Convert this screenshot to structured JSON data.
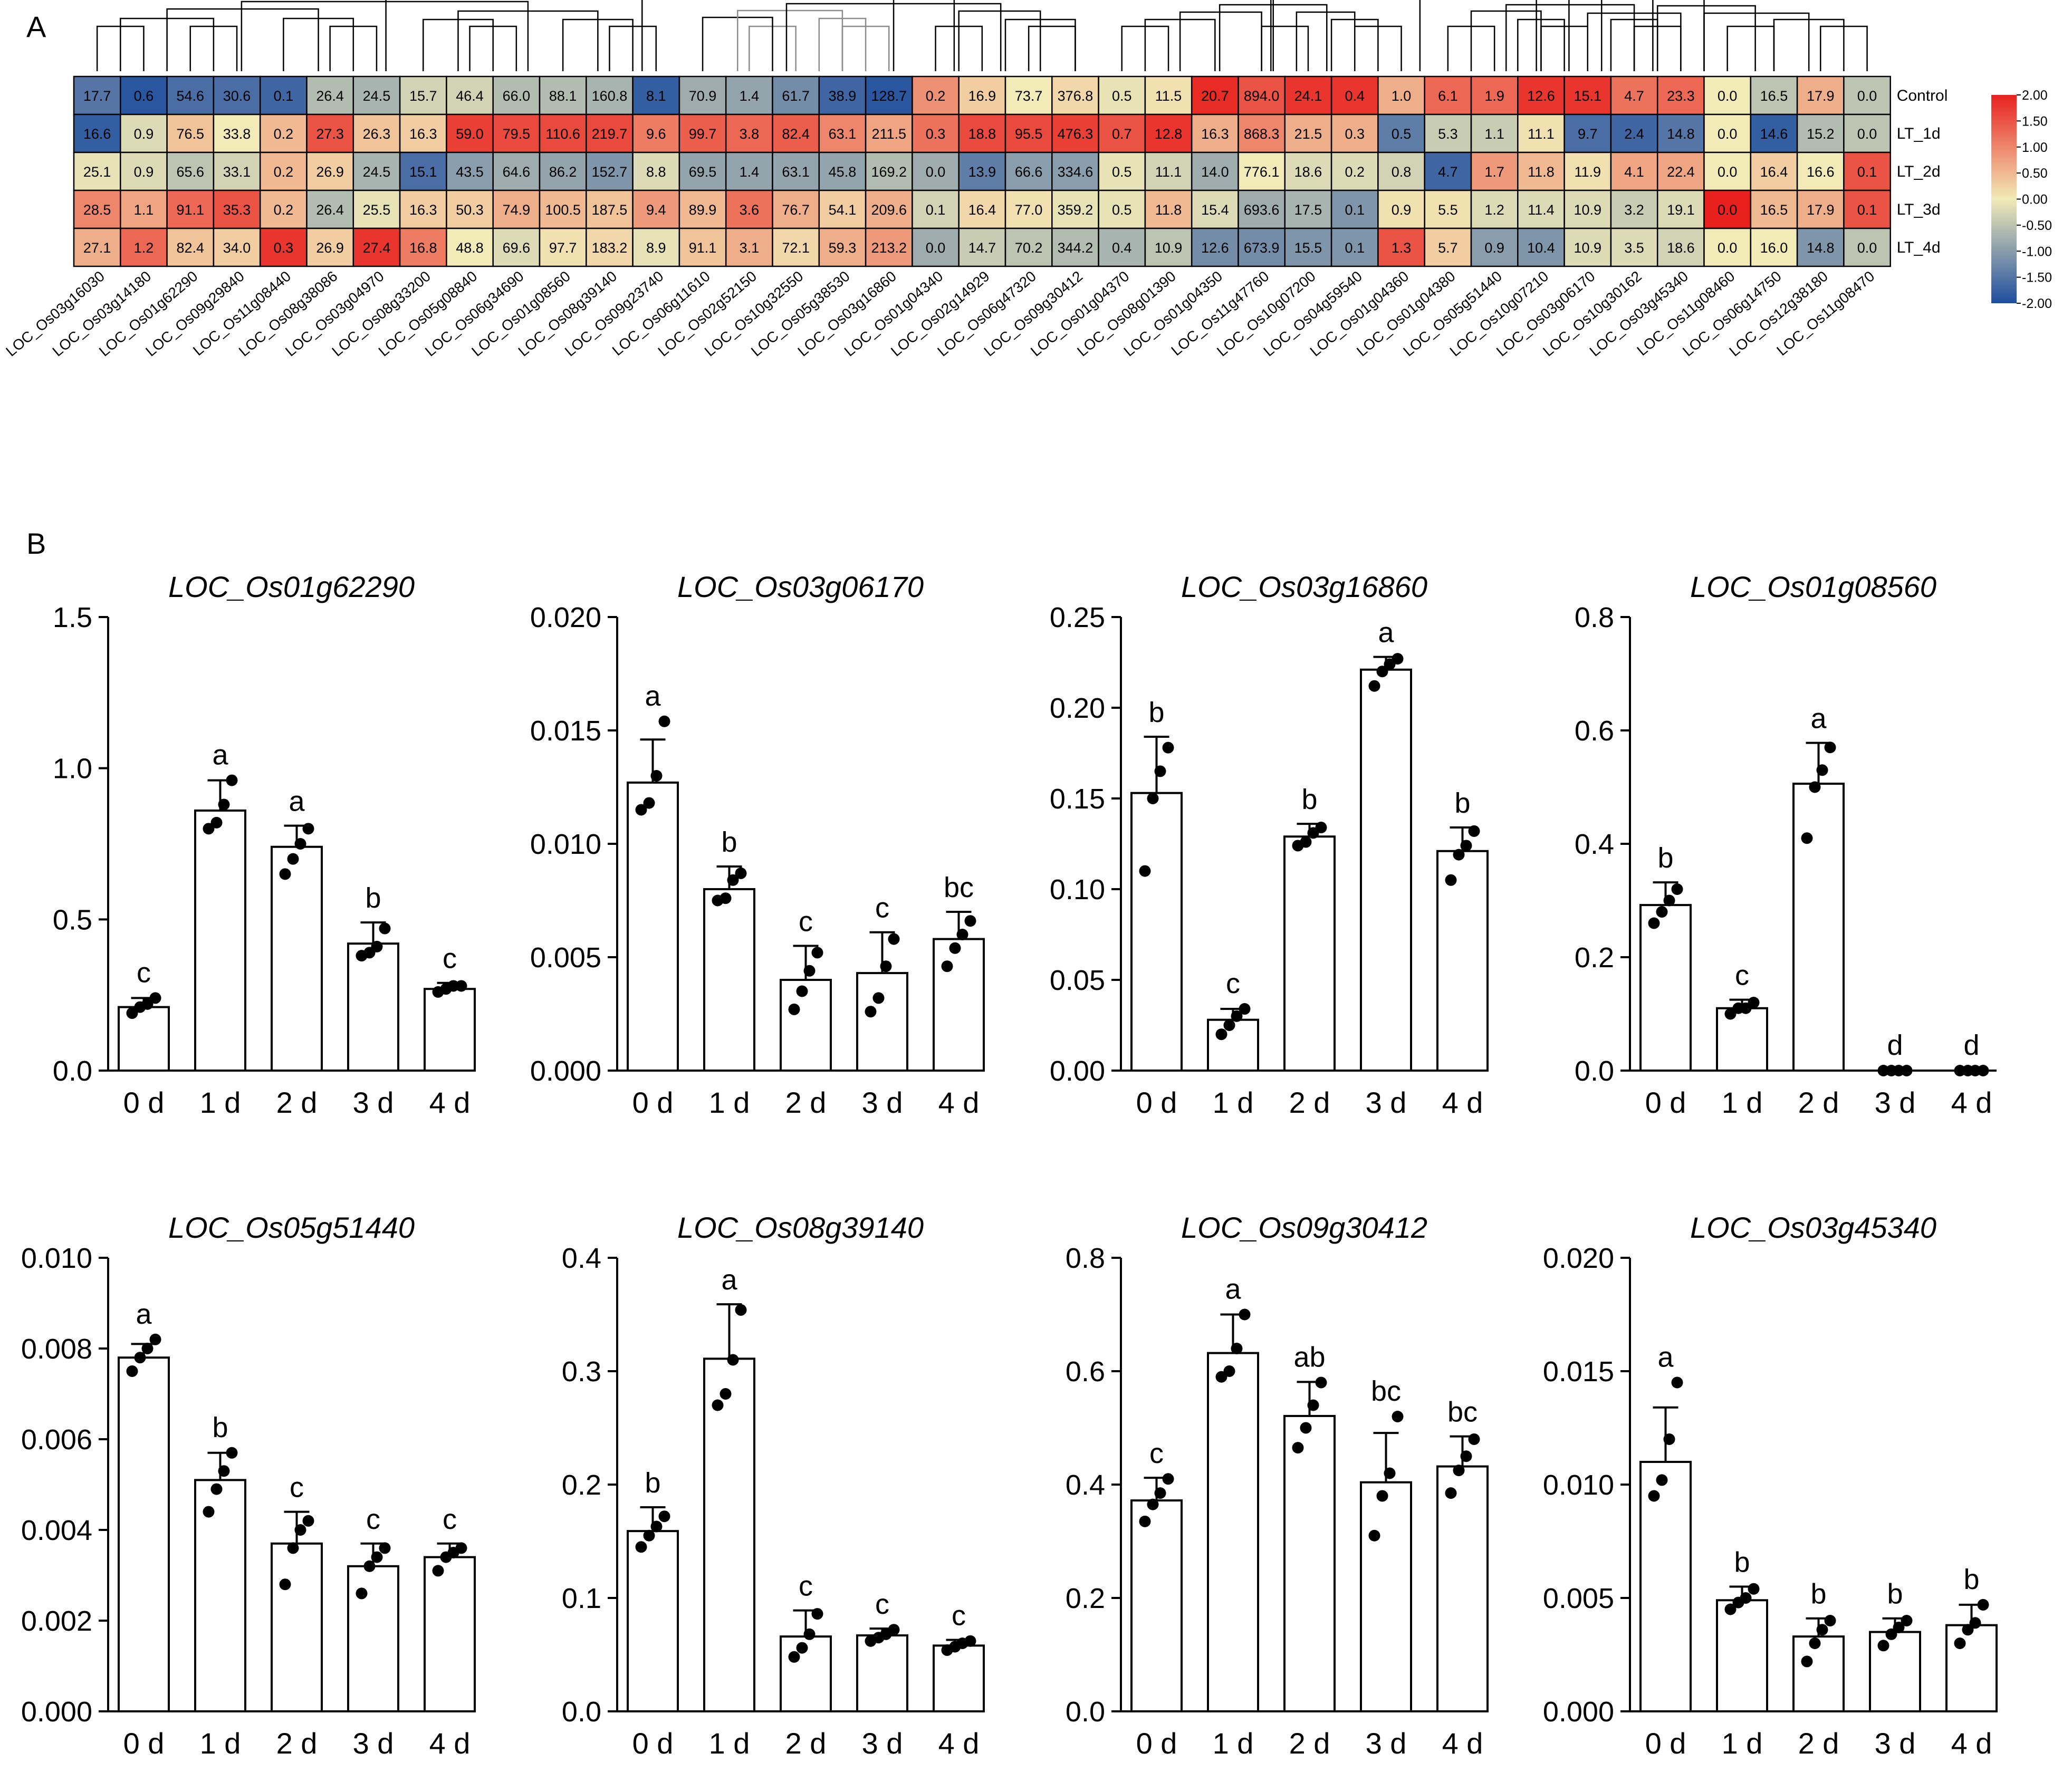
{
  "panel_labels": {
    "a": "A",
    "b": "B"
  },
  "chart_data": [
    {
      "type": "heatmap",
      "panel": "A",
      "title": "",
      "rows": [
        "Control",
        "LT_1d",
        "LT_2d",
        "LT_3d",
        "LT_4d"
      ],
      "columns": [
        "LOC_Os03g16030",
        "LOC_Os03g14180",
        "LOC_Os01g62290",
        "LOC_Os09g29840",
        "LOC_Os11g08440",
        "LOC_Os08g38086",
        "LOC_Os03g04970",
        "LOC_Os08g33200",
        "LOC_Os05g08840",
        "LOC_Os06g34690",
        "LOC_Os01g08560",
        "LOC_Os08g39140",
        "LOC_Os09g23740",
        "LOC_Os06g11610",
        "LOC_Os02g52150",
        "LOC_Os10g32550",
        "LOC_Os05g38530",
        "LOC_Os03g16860",
        "LOC_Os01g04340",
        "LOC_Os02g14929",
        "LOC_Os06g47320",
        "LOC_Os09g30412",
        "LOC_Os01g04370",
        "LOC_Os08g01390",
        "LOC_Os01g04350",
        "LOC_Os11g47760",
        "LOC_Os10g07200",
        "LOC_Os04g59540",
        "LOC_Os01g04360",
        "LOC_Os01g04380",
        "LOC_Os05g51440",
        "LOC_Os10g07210",
        "LOC_Os03g06170",
        "LOC_Os10g30162",
        "LOC_Os03g45340",
        "LOC_Os11g08460",
        "LOC_Os06g14750",
        "LOC_Os12g38180",
        "LOC_Os11g08470"
      ],
      "cell_labels": [
        [
          "17.7",
          "0.6",
          "54.6",
          "30.6",
          "0.1",
          "26.4",
          "24.5",
          "15.7",
          "46.4",
          "66.0",
          "88.1",
          "160.8",
          "8.1",
          "70.9",
          "1.4",
          "61.7",
          "38.9",
          "128.7",
          "0.2",
          "16.9",
          "73.7",
          "376.8",
          "0.5",
          "11.5",
          "20.7",
          "894.0",
          "24.1",
          "0.4",
          "1.0",
          "6.1",
          "1.9",
          "12.6",
          "15.1",
          "4.7",
          "23.3",
          "0.0",
          "16.5",
          "17.9",
          "0.0"
        ],
        [
          "16.6",
          "0.9",
          "76.5",
          "33.8",
          "0.2",
          "27.3",
          "26.3",
          "16.3",
          "59.0",
          "79.5",
          "110.6",
          "219.7",
          "9.6",
          "99.7",
          "3.8",
          "82.4",
          "63.1",
          "211.5",
          "0.3",
          "18.8",
          "95.5",
          "476.3",
          "0.7",
          "12.8",
          "16.3",
          "868.3",
          "21.5",
          "0.3",
          "0.5",
          "5.3",
          "1.1",
          "11.1",
          "9.7",
          "2.4",
          "14.8",
          "0.0",
          "14.6",
          "15.2",
          "0.0"
        ],
        [
          "25.1",
          "0.9",
          "65.6",
          "33.1",
          "0.2",
          "26.9",
          "24.5",
          "15.1",
          "43.5",
          "64.6",
          "86.2",
          "152.7",
          "8.8",
          "69.5",
          "1.4",
          "63.1",
          "45.8",
          "169.2",
          "0.0",
          "13.9",
          "66.6",
          "334.6",
          "0.5",
          "11.1",
          "14.0",
          "776.1",
          "18.6",
          "0.2",
          "0.8",
          "4.7",
          "1.7",
          "11.8",
          "11.9",
          "4.1",
          "22.4",
          "0.0",
          "16.4",
          "16.6",
          "0.1"
        ],
        [
          "28.5",
          "1.1",
          "91.1",
          "35.3",
          "0.2",
          "26.4",
          "25.5",
          "16.3",
          "50.3",
          "74.9",
          "100.5",
          "187.5",
          "9.4",
          "89.9",
          "3.6",
          "76.7",
          "54.1",
          "209.6",
          "0.1",
          "16.4",
          "77.0",
          "359.2",
          "0.5",
          "11.8",
          "15.4",
          "693.6",
          "17.5",
          "0.1",
          "0.9",
          "5.5",
          "1.2",
          "11.4",
          "10.9",
          "3.2",
          "19.1",
          "0.0",
          "16.5",
          "17.9",
          "0.1"
        ],
        [
          "27.1",
          "1.2",
          "82.4",
          "34.0",
          "0.3",
          "26.9",
          "27.4",
          "16.8",
          "48.8",
          "69.6",
          "97.7",
          "183.2",
          "8.9",
          "91.1",
          "3.1",
          "72.1",
          "59.3",
          "213.2",
          "0.0",
          "14.7",
          "70.2",
          "344.2",
          "0.4",
          "10.9",
          "12.6",
          "673.9",
          "15.5",
          "0.1",
          "1.3",
          "5.7",
          "0.9",
          "10.4",
          "10.9",
          "3.5",
          "18.6",
          "0.0",
          "16.0",
          "14.8",
          "0.0"
        ]
      ],
      "z_scores": [
        [
          -1.5,
          -1.9,
          -1.6,
          -1.6,
          -1.7,
          -0.6,
          -0.7,
          -0.3,
          -0.3,
          -0.6,
          -0.6,
          -0.7,
          -1.8,
          -0.8,
          -0.9,
          -1.2,
          -1.7,
          -1.9,
          0.9,
          0.3,
          0.0,
          0.2,
          -0.1,
          0.1,
          1.9,
          1.5,
          1.8,
          1.8,
          0.6,
          1.3,
          1.3,
          1.8,
          1.8,
          1.2,
          1.3,
          0,
          -0.5,
          0.6,
          -0.5
        ],
        [
          -1.8,
          -0.2,
          0.4,
          0.0,
          0.5,
          1.5,
          0.4,
          0.3,
          1.7,
          1.6,
          1.6,
          1.6,
          1.1,
          1.4,
          1.3,
          1.4,
          1.0,
          0.7,
          1.2,
          1.6,
          1.6,
          1.7,
          1.5,
          1.8,
          0.6,
          1.0,
          0.6,
          0.6,
          -1.4,
          -0.4,
          -0.4,
          0.1,
          -1.6,
          -1.7,
          -1.5,
          0,
          -1.8,
          -0.6,
          -0.5
        ],
        [
          -0.1,
          -0.2,
          -0.5,
          -0.3,
          0.5,
          0.3,
          -0.7,
          -1.6,
          -1.0,
          -0.8,
          -0.9,
          -1.1,
          -0.2,
          -0.9,
          -0.9,
          -0.9,
          -0.9,
          -0.6,
          -0.8,
          -1.4,
          -1.0,
          -1.0,
          -0.1,
          -0.3,
          -0.8,
          0.0,
          -0.2,
          -0.2,
          -0.3,
          -1.7,
          0.8,
          0.5,
          0.1,
          0.7,
          0.7,
          0,
          0.3,
          0.0,
          1.5
        ],
        [
          1.0,
          0.7,
          1.3,
          1.5,
          0.5,
          -0.6,
          -0.1,
          0.3,
          0.3,
          0.6,
          0.5,
          0.4,
          0.8,
          0.5,
          1.2,
          0.6,
          0.3,
          0.6,
          -0.3,
          0.2,
          0.1,
          -0.1,
          -0.1,
          0.5,
          -0.2,
          -0.8,
          -0.7,
          -1.1,
          0.1,
          0.1,
          -0.2,
          -0.2,
          -0.2,
          -0.4,
          -0.2,
          2.0,
          0.5,
          0.6,
          1.5
        ],
        [
          0.6,
          1.3,
          0.4,
          0.3,
          1.8,
          0.3,
          1.8,
          1.1,
          0.0,
          -0.2,
          0.1,
          0.2,
          -0.1,
          0.4,
          0.6,
          0.2,
          0.6,
          0.8,
          -0.8,
          -0.4,
          -0.5,
          -0.6,
          -0.7,
          -0.5,
          -1.2,
          -1.2,
          -1.1,
          -1.1,
          1.5,
          0.3,
          -1.0,
          -1.1,
          -0.2,
          -0.2,
          -0.3,
          0,
          0.0,
          -1.1,
          -0.5
        ]
      ],
      "colorbar": {
        "ticks": [
          "2.00",
          "1.50",
          "1.00",
          "0.50",
          "0.00",
          "-0.50",
          "-1.00",
          "-1.50",
          "-2.00"
        ],
        "range": [
          -2,
          2
        ],
        "colors": {
          "low": "#1f4e9f",
          "mid": "#f2ebb8",
          "high": "#e8211e"
        }
      },
      "dendrogram_colors": {
        "main": "#000000",
        "sub": "#8c8c8c"
      }
    },
    {
      "type": "bar",
      "panel": "B",
      "title": "LOC_Os01g62290",
      "categories": [
        "0 d",
        "1 d",
        "2 d",
        "3 d",
        "4 d"
      ],
      "values": [
        0.21,
        0.86,
        0.74,
        0.42,
        0.27
      ],
      "errors": [
        0.03,
        0.1,
        0.07,
        0.07,
        0.02
      ],
      "letters": [
        "c",
        "a",
        "a",
        "b",
        "c"
      ],
      "points": [
        [
          0.19,
          0.21,
          0.22,
          0.24
        ],
        [
          0.8,
          0.82,
          0.88,
          0.96
        ],
        [
          0.65,
          0.7,
          0.75,
          0.8
        ],
        [
          0.38,
          0.39,
          0.41,
          0.47
        ],
        [
          0.26,
          0.27,
          0.28,
          0.28
        ]
      ],
      "ylim": [
        0,
        1.5
      ],
      "yticks": [
        "0.0",
        "0.5",
        "1.0",
        "1.5"
      ]
    },
    {
      "type": "bar",
      "panel": "B",
      "title": "LOC_Os03g06170",
      "categories": [
        "0 d",
        "1 d",
        "2 d",
        "3 d",
        "4 d"
      ],
      "values": [
        0.0127,
        0.008,
        0.004,
        0.0043,
        0.0058
      ],
      "errors": [
        0.0019,
        0.001,
        0.0015,
        0.0018,
        0.0012
      ],
      "letters": [
        "a",
        "b",
        "c",
        "c",
        "bc"
      ],
      "points": [
        [
          0.0115,
          0.0118,
          0.013,
          0.0154
        ],
        [
          0.0075,
          0.0076,
          0.0084,
          0.0087
        ],
        [
          0.0027,
          0.0035,
          0.0044,
          0.0052
        ],
        [
          0.0026,
          0.0032,
          0.0046,
          0.0058
        ],
        [
          0.0046,
          0.0054,
          0.006,
          0.0066
        ]
      ],
      "ylim": [
        0,
        0.02
      ],
      "yticks": [
        "0.000",
        "0.005",
        "0.010",
        "0.015",
        "0.020"
      ]
    },
    {
      "type": "bar",
      "panel": "B",
      "title": "LOC_Os03g16860",
      "categories": [
        "0 d",
        "1 d",
        "2 d",
        "3 d",
        "4 d"
      ],
      "values": [
        0.153,
        0.028,
        0.129,
        0.221,
        0.121
      ],
      "errors": [
        0.031,
        0.006,
        0.007,
        0.007,
        0.013
      ],
      "letters": [
        "b",
        "c",
        "b",
        "a",
        "b"
      ],
      "points": [
        [
          0.11,
          0.15,
          0.165,
          0.178
        ],
        [
          0.02,
          0.025,
          0.03,
          0.034
        ],
        [
          0.124,
          0.126,
          0.131,
          0.134
        ],
        [
          0.212,
          0.22,
          0.224,
          0.227
        ],
        [
          0.105,
          0.119,
          0.124,
          0.132
        ]
      ],
      "ylim": [
        0,
        0.25
      ],
      "yticks": [
        "0.00",
        "0.05",
        "0.10",
        "0.15",
        "0.20",
        "0.25"
      ]
    },
    {
      "type": "bar",
      "panel": "B",
      "title": "LOC_Os01g08560",
      "categories": [
        "0 d",
        "1 d",
        "2 d",
        "3 d",
        "4 d"
      ],
      "values": [
        0.292,
        0.11,
        0.506,
        0.0,
        0.0
      ],
      "errors": [
        0.04,
        0.015,
        0.072,
        0.0,
        0.0
      ],
      "letters": [
        "b",
        "c",
        "a",
        "d",
        "d"
      ],
      "points": [
        [
          0.26,
          0.28,
          0.3,
          0.32
        ],
        [
          0.1,
          0.11,
          0.11,
          0.12
        ],
        [
          0.41,
          0.5,
          0.53,
          0.57
        ],
        [
          0,
          0,
          0,
          0
        ],
        [
          0,
          0,
          0,
          0
        ]
      ],
      "ylim": [
        0,
        0.8
      ],
      "yticks": [
        "0.0",
        "0.2",
        "0.4",
        "0.6",
        "0.8"
      ]
    },
    {
      "type": "bar",
      "panel": "B",
      "title": "LOC_Os05g51440",
      "categories": [
        "0 d",
        "1 d",
        "2 d",
        "3 d",
        "4 d"
      ],
      "values": [
        0.0078,
        0.0051,
        0.0037,
        0.0032,
        0.0034
      ],
      "errors": [
        0.0003,
        0.0006,
        0.0007,
        0.0005,
        0.0003
      ],
      "letters": [
        "a",
        "b",
        "c",
        "c",
        "c"
      ],
      "points": [
        [
          0.0075,
          0.0078,
          0.008,
          0.0082
        ],
        [
          0.0044,
          0.0049,
          0.0053,
          0.0057
        ],
        [
          0.0028,
          0.0036,
          0.004,
          0.0042
        ],
        [
          0.0026,
          0.0032,
          0.0034,
          0.0036
        ],
        [
          0.0031,
          0.0034,
          0.0035,
          0.0036
        ]
      ],
      "ylim": [
        0,
        0.01
      ],
      "yticks": [
        "0.000",
        "0.002",
        "0.004",
        "0.006",
        "0.008",
        "0.010"
      ]
    },
    {
      "type": "bar",
      "panel": "B",
      "title": "LOC_Os08g39140",
      "categories": [
        "0 d",
        "1 d",
        "2 d",
        "3 d",
        "4 d"
      ],
      "values": [
        0.159,
        0.311,
        0.066,
        0.067,
        0.058
      ],
      "errors": [
        0.021,
        0.048,
        0.023,
        0.006,
        0.005
      ],
      "letters": [
        "b",
        "a",
        "c",
        "c",
        "c"
      ],
      "points": [
        [
          0.145,
          0.155,
          0.163,
          0.172
        ],
        [
          0.27,
          0.28,
          0.31,
          0.354
        ],
        [
          0.048,
          0.056,
          0.068,
          0.086
        ],
        [
          0.062,
          0.065,
          0.068,
          0.072
        ],
        [
          0.054,
          0.057,
          0.06,
          0.062
        ]
      ],
      "ylim": [
        0,
        0.4
      ],
      "yticks": [
        "0.0",
        "0.1",
        "0.2",
        "0.3",
        "0.4"
      ]
    },
    {
      "type": "bar",
      "panel": "B",
      "title": "LOC_Os09g30412",
      "categories": [
        "0 d",
        "1 d",
        "2 d",
        "3 d",
        "4 d"
      ],
      "values": [
        0.372,
        0.632,
        0.521,
        0.404,
        0.432
      ],
      "errors": [
        0.04,
        0.068,
        0.06,
        0.087,
        0.053
      ],
      "letters": [
        "c",
        "a",
        "ab",
        "bc",
        "bc"
      ],
      "points": [
        [
          0.335,
          0.365,
          0.385,
          0.41
        ],
        [
          0.59,
          0.6,
          0.64,
          0.7
        ],
        [
          0.465,
          0.5,
          0.54,
          0.58
        ],
        [
          0.31,
          0.38,
          0.42,
          0.52
        ],
        [
          0.385,
          0.425,
          0.45,
          0.48
        ]
      ],
      "ylim": [
        0,
        0.8
      ],
      "yticks": [
        "0.0",
        "0.2",
        "0.4",
        "0.6",
        "0.8"
      ]
    },
    {
      "type": "bar",
      "panel": "B",
      "title": "LOC_Os03g45340",
      "categories": [
        "0 d",
        "1 d",
        "2 d",
        "3 d",
        "4 d"
      ],
      "values": [
        0.011,
        0.0049,
        0.0033,
        0.0035,
        0.0038
      ],
      "errors": [
        0.0024,
        0.0006,
        0.0008,
        0.0006,
        0.0009
      ],
      "letters": [
        "a",
        "b",
        "b",
        "b",
        "b"
      ],
      "points": [
        [
          0.0095,
          0.0102,
          0.012,
          0.0145
        ],
        [
          0.0045,
          0.0048,
          0.005,
          0.0054
        ],
        [
          0.0022,
          0.003,
          0.0036,
          0.004
        ],
        [
          0.0029,
          0.0034,
          0.0037,
          0.004
        ],
        [
          0.003,
          0.0036,
          0.0039,
          0.0047
        ]
      ],
      "ylim": [
        0,
        0.02
      ],
      "yticks": [
        "0.000",
        "0.005",
        "0.010",
        "0.015",
        "0.020"
      ]
    }
  ]
}
